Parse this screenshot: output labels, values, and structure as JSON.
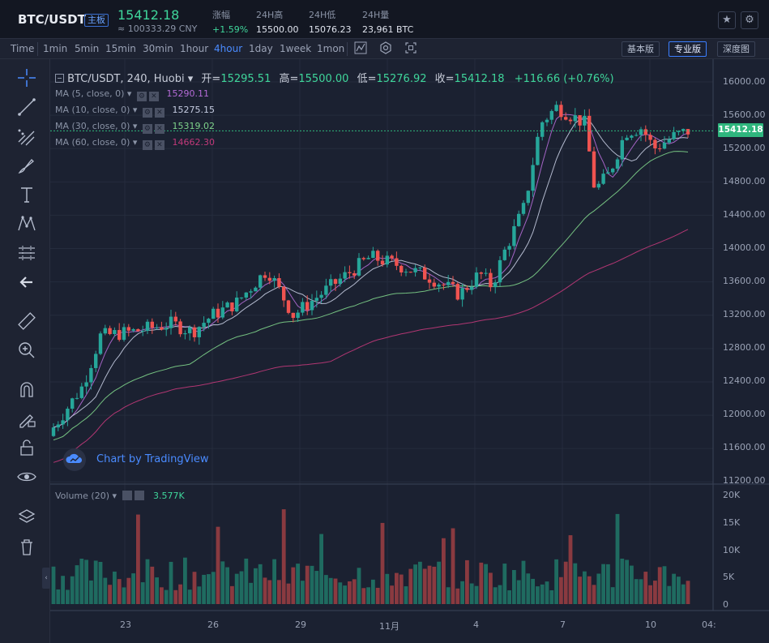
{
  "header": {
    "pair": "BTC/USDT",
    "badge": "主板",
    "last_price": "15412.18",
    "cny": "≈ 100333.29 CNY",
    "stats": [
      {
        "label": "涨幅",
        "value": "+1.59%"
      },
      {
        "label": "24H高",
        "value": "15500.00"
      },
      {
        "label": "24H低",
        "value": "15076.23"
      },
      {
        "label": "24H量",
        "value": "23,961 BTC"
      }
    ],
    "star_icon": "★",
    "settings_icon": "⚙"
  },
  "toolbar": {
    "time_label": "Time",
    "timeframes": [
      "1min",
      "5min",
      "15min",
      "30min",
      "1hour",
      "4hour",
      "1day",
      "1week",
      "1mon"
    ],
    "active_timeframe": "4hour",
    "views": [
      "基本版",
      "专业版",
      "深度图"
    ],
    "active_view": "专业版"
  },
  "legend": {
    "symbol": "BTC/USDT, 240, Huobi",
    "open_label": "开=",
    "open": "15295.51",
    "high_label": "高=",
    "high": "15500.00",
    "low_label": "低=",
    "low": "15276.92",
    "close_label": "收=",
    "close": "15412.18",
    "change": "+116.66 (+0.76%)"
  },
  "ma": [
    {
      "label": "MA (5, close, 0)",
      "value": "15290.11",
      "color": "#b46bd6"
    },
    {
      "label": "MA (10, close, 0)",
      "value": "15275.15",
      "color": "#c4cbe0"
    },
    {
      "label": "MA (30, close, 0)",
      "value": "15319.02",
      "color": "#7ed28a"
    },
    {
      "label": "MA (60, close, 0)",
      "value": "14662.30",
      "color": "#c2397a"
    }
  ],
  "watermark": "Chart by TradingView",
  "current_price_tag": "15412.18",
  "volume": {
    "label": "Volume (20)",
    "value": "3.577K"
  },
  "price_axis": [
    "16000.00",
    "15600.00",
    "15200.00",
    "14800.00",
    "14400.00",
    "14000.00",
    "13600.00",
    "13200.00",
    "12800.00",
    "12400.00",
    "12000.00",
    "11600.00",
    "11200.00"
  ],
  "volume_axis": [
    "20K",
    "15K",
    "10K",
    "5K",
    "0"
  ],
  "time_axis": [
    "23",
    "26",
    "29",
    "11月",
    "4",
    "7",
    "10",
    "04:"
  ],
  "colors": {
    "up": "#26a69a",
    "down": "#ef5350",
    "accent": "#4a8bff"
  }
}
